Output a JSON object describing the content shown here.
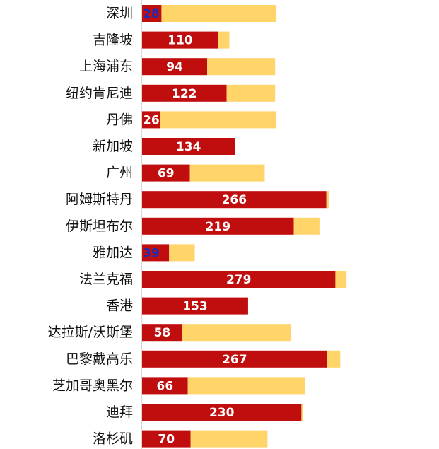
{
  "chart_data": {
    "type": "bar",
    "orientation": "horizontal",
    "stacked": true,
    "title": "",
    "xlabel": "",
    "ylabel": "",
    "categories": [
      "深圳",
      "吉隆坡",
      "上海浦东",
      "纽约肯尼迪",
      "丹佛",
      "新加坡",
      "广州",
      "阿姆斯特丹",
      "伊斯坦布尔",
      "雅加达",
      "法兰克福",
      "香港",
      "达拉斯/沃斯堡",
      "巴黎戴高乐",
      "芝加哥奥黑尔",
      "迪拜",
      "洛杉矶"
    ],
    "series": [
      {
        "values": [
          28,
          110,
          94,
          122,
          26,
          134,
          69,
          266,
          219,
          39,
          279,
          153,
          58,
          267,
          66,
          230,
          70
        ]
      },
      {
        "values": [
          166,
          16,
          98,
          70,
          168,
          0,
          108,
          4,
          37,
          37,
          16,
          0,
          157,
          19,
          169,
          2,
          111
        ]
      }
    ],
    "data_labels": [
      "28",
      "110",
      "94",
      "122",
      "26",
      "134",
      "69",
      "266",
      "219",
      "39",
      "279",
      "153",
      "58",
      "267",
      "66",
      "230",
      "70"
    ],
    "colors": {
      "primary": "#c00d0d",
      "secondary": "#ffd56a",
      "label": "#ffffff",
      "label_small": "#1e2cb3",
      "axis": "#d9d9d9"
    },
    "xlim": [
      0,
      300
    ],
    "grid": false,
    "legend": "none"
  }
}
